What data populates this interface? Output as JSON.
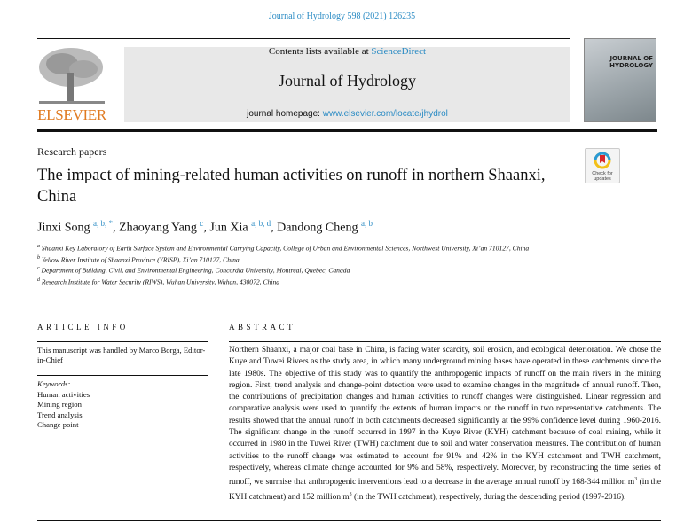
{
  "header": {
    "citation": "Journal of Hydrology 598 (2021) 126235",
    "contents_prefix": "Contents lists available at ",
    "contents_link": "ScienceDirect",
    "journal_title": "Journal of Hydrology",
    "homepage_prefix": "journal homepage: ",
    "homepage_link": "www.elsevier.com/locate/jhydrol",
    "publisher_logo": "ELSEVIER",
    "cover_title": "JOURNAL OF HYDROLOGY"
  },
  "article": {
    "section": "Research papers",
    "title": "The impact of mining-related human activities on runoff in northern Shaanxi, China",
    "check_updates": "Check for updates",
    "authors": [
      {
        "name": "Jinxi Song",
        "sup": "a, b, *"
      },
      {
        "name": "Zhaoyang Yang",
        "sup": "c"
      },
      {
        "name": "Jun Xia",
        "sup": "a, b, d"
      },
      {
        "name": "Dandong Cheng",
        "sup": "a, b"
      }
    ],
    "affiliations": [
      {
        "key": "a",
        "text": "Shaanxi Key Laboratory of Earth Surface System and Environmental Carrying Capacity, College of Urban and Environmental Sciences, Northwest University, Xi’an 710127, China"
      },
      {
        "key": "b",
        "text": "Yellow River Institute of Shaanxi Province (YRISP), Xi’an 710127, China"
      },
      {
        "key": "c",
        "text": "Department of Building, Civil, and Environmental Engineering, Concordia University, Montreal, Quebec, Canada"
      },
      {
        "key": "d",
        "text": "Research Institute for Water Security (RIWS), Wuhan University, Wuhan, 430072, China"
      }
    ]
  },
  "article_info": {
    "heading": "ARTICLE INFO",
    "handled_by": "This manuscript was handled by Marco Borga, Editor-in-Chief",
    "keywords_label": "Keywords:",
    "keywords": [
      "Human activities",
      "Mining region",
      "Trend analysis",
      "Change point"
    ]
  },
  "abstract": {
    "heading": "ABSTRACT",
    "text_1": "Northern Shaanxi, a major coal base in China, is facing water scarcity, soil erosion, and ecological deterioration. We chose the Kuye and Tuwei Rivers as the study area, in which many underground mining bases have operated in these catchments since the late 1980s. The objective of this study was to quantify the anthropogenic impacts of runoff on the main rivers in the mining region. First, trend analysis and change-point detection were used to examine changes in the magnitude of annual runoff. Then, the contributions of precipitation changes and human activities to runoff changes were distinguished. Linear regression and comparative analysis were used to quantify the extents of human impacts on the runoff in two representative catchments. The results showed that the annual runoff in both catchments decreased significantly at the 99% confidence level during 1960-2016. The significant change in the runoff occurred in 1997 in the Kuye River (KYH) catchment because of coal mining, while it occurred in 1980 in the Tuwei River (TWH) catchment due to soil and water conservation measures. The contribution of human activities to the runoff change was estimated to account for 91% and 42% in the KYH catchment and TWH catchment, respectively, whereas climate change accounted for 9% and 58%, respectively. Moreover, by reconstructing the time series of runoff, we surmise that anthropogenic interventions lead to a decrease in the average annual runoff by 168-344 million m",
    "sup_1": "3",
    "text_2": " (in the KYH catchment) and 152 million m",
    "sup_2": "3",
    "text_3": " (in the TWH catchment), respectively, during the descending period (1997-2016)."
  },
  "colors": {
    "link": "#2a8bc4",
    "elsevier": "#e07a20",
    "banner": "#e8e8e8"
  }
}
